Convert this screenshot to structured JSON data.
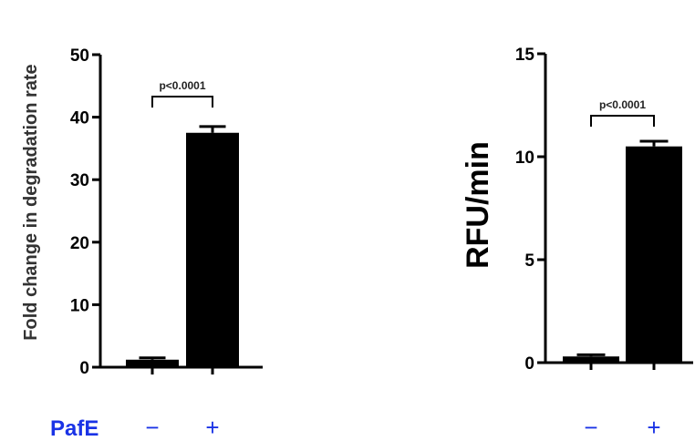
{
  "chart_data": [
    {
      "type": "bar",
      "ylabel": "Fold change in degradation rate",
      "ylim": [
        0,
        50
      ],
      "yticks": [
        "0",
        "10",
        "20",
        "30",
        "40",
        "50"
      ],
      "categories": [
        "−",
        "+"
      ],
      "values": [
        1.2,
        37.5
      ],
      "errors": [
        0.3,
        1.0
      ],
      "annotation": "p<0.0001",
      "color": "#000000"
    },
    {
      "type": "bar",
      "ylabel": "RFU/min",
      "ylim": [
        0,
        15
      ],
      "yticks": [
        "0",
        "5",
        "10",
        "15"
      ],
      "categories": [
        "−",
        "+"
      ],
      "values": [
        0.3,
        10.5
      ],
      "errors": [
        0.08,
        0.25
      ],
      "annotation": "p<0.0001",
      "color": "#000000"
    }
  ],
  "condition_label": "PafE",
  "colors": {
    "bars": "#000000",
    "condition_text": "#1a33e6"
  }
}
